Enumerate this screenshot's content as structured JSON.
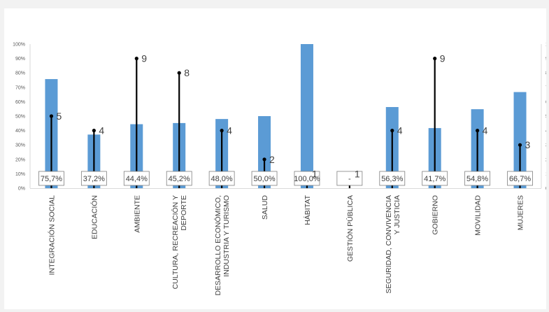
{
  "chart_data": {
    "type": "bar",
    "title": "",
    "xlabel": "",
    "ylabel": "",
    "ylim": [
      0,
      100
    ],
    "y_ticks": [
      "0%",
      "10%",
      "20%",
      "30%",
      "40%",
      "50%",
      "60%",
      "70%",
      "80%",
      "90%",
      "100%"
    ],
    "y2lim": [
      0,
      10
    ],
    "y2_ticks": [
      "0",
      "1",
      "2",
      "3",
      "4",
      "5",
      "6",
      "7",
      "8",
      "9",
      "10"
    ],
    "grid": false,
    "bar_color": "#5b9bd5",
    "line_color": "#000000",
    "categories": [
      [
        "INTEGRACIÓN SOCIAL"
      ],
      [
        "EDUCACIÓN"
      ],
      [
        "AMBIENTE"
      ],
      [
        "CULTURA, RECREACIÓN Y",
        "DEPORTE"
      ],
      [
        "DESARROLLO ECONÓMICO,",
        "INDUSTRIA Y TURISMO"
      ],
      [
        "SALUD"
      ],
      [
        "HÁBITAT"
      ],
      [
        "GESTIÓN PÚBLICA"
      ],
      [
        "SEGURIDAD, CONVIVENCIA",
        "Y JUSTICIA"
      ],
      [
        "GOBIERNO"
      ],
      [
        "MOVILIDAD"
      ],
      [
        "MUJERES"
      ]
    ],
    "series": [
      {
        "type": "bar",
        "axis": "left",
        "values": [
          75.7,
          37.2,
          44.4,
          45.2,
          48.0,
          50.0,
          100.0,
          0,
          56.3,
          41.7,
          54.8,
          66.7
        ],
        "data_labels": [
          "75,7%",
          "37,2%",
          "44,4%",
          "45,2%",
          "48,0%",
          "50,0%",
          "100,0%",
          "-",
          "56,3%",
          "41,7%",
          "54,8%",
          "66,7%"
        ]
      },
      {
        "type": "dropline",
        "axis": "right",
        "values": [
          5,
          4,
          9,
          8,
          4,
          2,
          1,
          1,
          4,
          9,
          4,
          3
        ],
        "data_labels": [
          "5",
          "4",
          "9",
          "8",
          "4",
          "2",
          "1",
          "1",
          "4",
          "9",
          "4",
          "3"
        ]
      }
    ]
  }
}
